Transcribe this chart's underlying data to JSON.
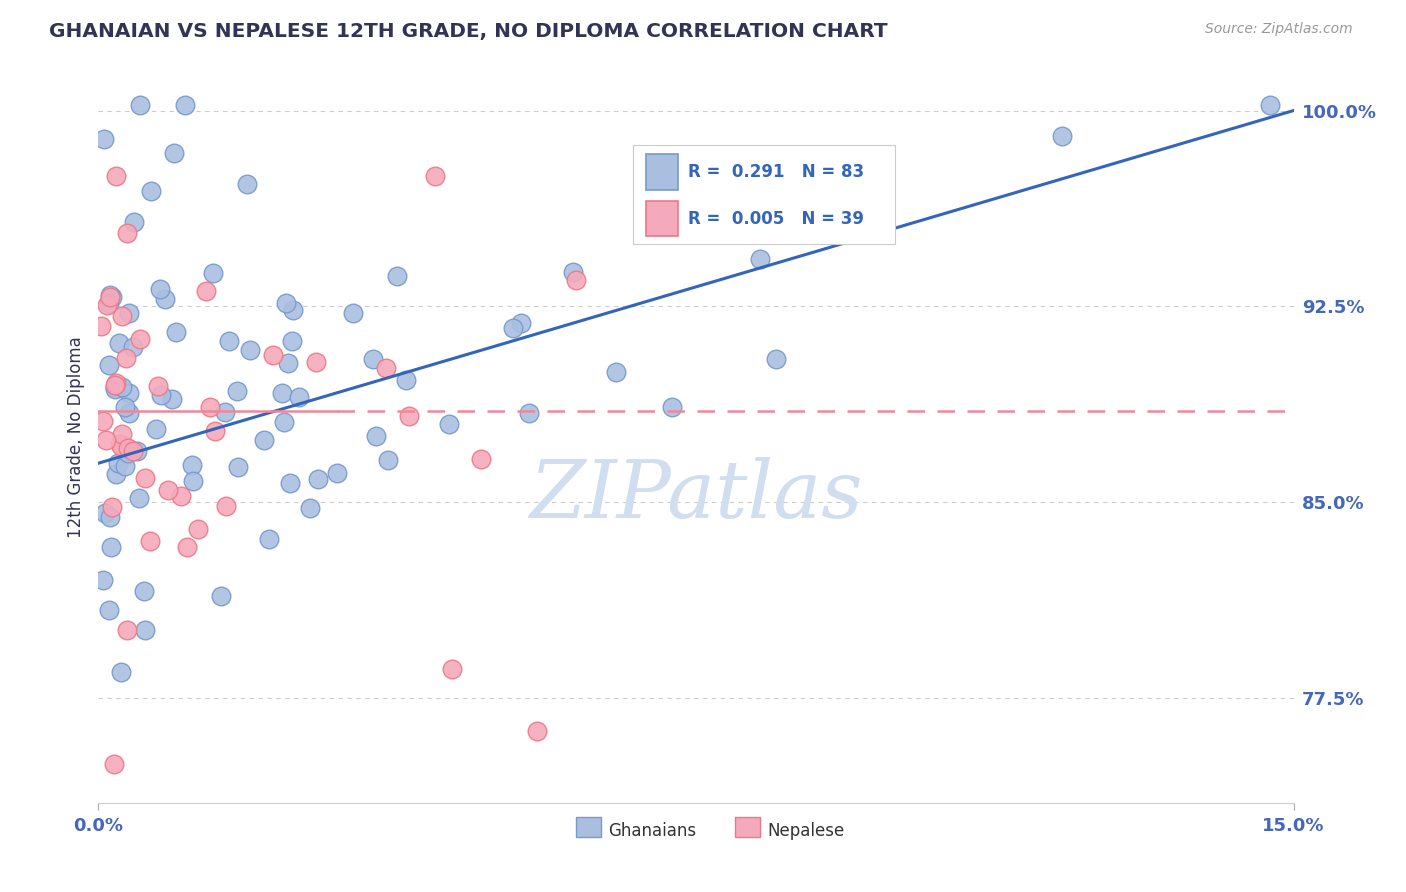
{
  "title": "GHANAIAN VS NEPALESE 12TH GRADE, NO DIPLOMA CORRELATION CHART",
  "source": "Source: ZipAtlas.com",
  "ylabel": "12th Grade, No Diploma",
  "yticks": [
    77.5,
    85.0,
    92.5,
    100.0
  ],
  "ytick_labels": [
    "77.5%",
    "85.0%",
    "92.5%",
    "100.0%"
  ],
  "xtick_left": "0.0%",
  "xtick_right": "15.0%",
  "xmin": 0.0,
  "xmax": 15.0,
  "ymin": 73.5,
  "ymax": 101.5,
  "blue_face": "#AABFE0",
  "blue_edge": "#7799CC",
  "pink_face": "#F5AABB",
  "pink_edge": "#EE7788",
  "trend_blue": "#3366BB",
  "trend_pink": "#EE8899",
  "grid_color": "#CCCCCC",
  "title_color": "#333355",
  "tick_color": "#4466BB",
  "ylabel_color": "#333355",
  "source_color": "#999999",
  "watermark": "ZIPatlas",
  "watermark_color": "#D0DEF0",
  "legend_label1": "R =  0.291   N = 83",
  "legend_label2": "R =  0.005   N = 39",
  "legend_text_color": "#3366BB",
  "bottom_label1": "Ghanaians",
  "bottom_label2": "Nepalese",
  "bottom_text_color": "#333333"
}
